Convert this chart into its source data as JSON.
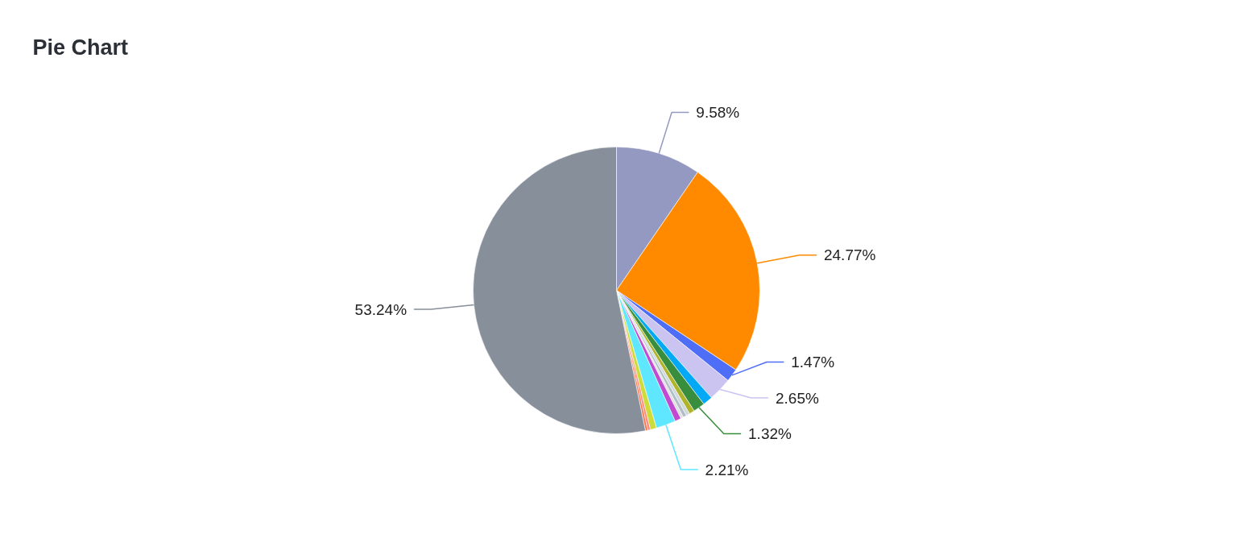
{
  "chart_data": {
    "type": "pie",
    "title": "Pie Chart",
    "categories": [
      null,
      null,
      null,
      null,
      null,
      null,
      null,
      null,
      null,
      null,
      null,
      null,
      null,
      null,
      null,
      null
    ],
    "values": [
      9.58,
      24.77,
      1.47,
      2.65,
      1.1,
      1.32,
      0.6,
      0.4,
      0.4,
      0.3,
      0.7,
      2.21,
      0.7,
      0.3,
      0.26,
      53.24
    ],
    "value_labels": [
      "9.58%",
      "24.77%",
      "1.47%",
      "2.65%",
      null,
      "1.32%",
      null,
      null,
      null,
      null,
      null,
      "2.21%",
      null,
      null,
      null,
      "53.24%"
    ],
    "colors": [
      "#9399c0",
      "#ff8a00",
      "#4f6ef7",
      "#cbc3f0",
      "#03a9f4",
      "#388e3c",
      "#afb42b",
      "#cfd8dc",
      "#b0bec5",
      "#e0e0e0",
      "#c04bd0",
      "#5ee7ff",
      "#cddc39",
      "#ff8a80",
      "#ff7043",
      "#878f9b"
    ]
  }
}
